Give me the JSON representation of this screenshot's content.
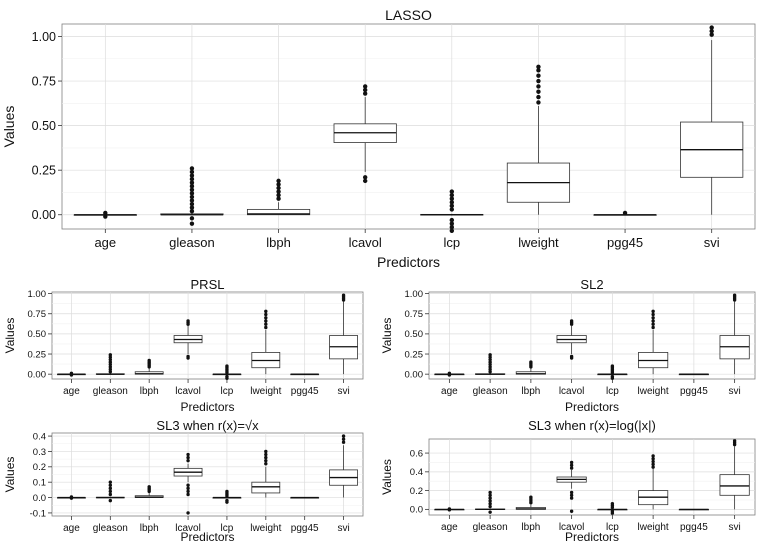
{
  "chart_data": [
    {
      "type": "boxplot",
      "title": "LASSO",
      "xlabel": "Predictors",
      "ylabel": "Values",
      "ylim": [
        -0.08,
        1.07
      ],
      "yticks": [
        0.0,
        0.25,
        0.5,
        0.75,
        1.0
      ],
      "ytick_labels": [
        "0.00",
        "0.25",
        "0.50",
        "0.75",
        "1.00"
      ],
      "grid": true,
      "categories": [
        "age",
        "gleason",
        "lbph",
        "lcavol",
        "lcp",
        "lweight",
        "pgg45",
        "svi"
      ],
      "boxes": [
        {
          "q1": 0.0,
          "median": 0.0,
          "q3": 0.0,
          "whisker_low": 0.0,
          "whisker_high": 0.0,
          "outliers": [
            -0.01,
            0.01
          ]
        },
        {
          "q1": 0.0,
          "median": 0.0,
          "q3": 0.005,
          "whisker_low": 0.0,
          "whisker_high": 0.01,
          "outliers": [
            -0.05,
            -0.02,
            0.02,
            0.04,
            0.06,
            0.08,
            0.1,
            0.12,
            0.14,
            0.16,
            0.18,
            0.2,
            0.22,
            0.24,
            0.26
          ]
        },
        {
          "q1": 0.0,
          "median": 0.005,
          "q3": 0.03,
          "whisker_low": 0.0,
          "whisker_high": 0.07,
          "outliers": [
            0.09,
            0.11,
            0.13,
            0.15,
            0.17,
            0.19
          ]
        },
        {
          "q1": 0.405,
          "median": 0.46,
          "q3": 0.51,
          "whisker_low": 0.24,
          "whisker_high": 0.66,
          "outliers": [
            0.19,
            0.21,
            0.68,
            0.7,
            0.72
          ]
        },
        {
          "q1": -0.002,
          "median": 0.0,
          "q3": 0.002,
          "whisker_low": -0.005,
          "whisker_high": 0.005,
          "outliers": [
            -0.09,
            -0.07,
            -0.05,
            -0.03,
            0.03,
            0.05,
            0.07,
            0.09,
            0.11,
            0.13
          ]
        },
        {
          "q1": 0.07,
          "median": 0.18,
          "q3": 0.29,
          "whisker_low": 0.0,
          "whisker_high": 0.61,
          "outliers": [
            0.63,
            0.66,
            0.69,
            0.72,
            0.75,
            0.78,
            0.81,
            0.83
          ]
        },
        {
          "q1": 0.0,
          "median": 0.0,
          "q3": 0.0,
          "whisker_low": 0.0,
          "whisker_high": 0.0,
          "outliers": [
            0.01
          ]
        },
        {
          "q1": 0.21,
          "median": 0.365,
          "q3": 0.52,
          "whisker_low": 0.0,
          "whisker_high": 0.98,
          "outliers": [
            1.01,
            1.03,
            1.05
          ]
        }
      ]
    },
    {
      "type": "boxplot",
      "title": "PRSL",
      "xlabel": "Predictors",
      "ylabel": "Values",
      "ylim": [
        -0.06,
        1.02
      ],
      "yticks": [
        0.0,
        0.25,
        0.5,
        0.75,
        1.0
      ],
      "ytick_labels": [
        "0.00",
        "0.25",
        "0.50",
        "0.75",
        "1.00"
      ],
      "grid": true,
      "categories": [
        "age",
        "gleason",
        "lbph",
        "lcavol",
        "lcp",
        "lweight",
        "pgg45",
        "svi"
      ],
      "boxes": [
        {
          "q1": 0.0,
          "median": 0.0,
          "q3": 0.0,
          "whisker_low": 0.0,
          "whisker_high": 0.0,
          "outliers": [
            -0.01,
            0.01
          ]
        },
        {
          "q1": 0.0,
          "median": 0.0,
          "q3": 0.005,
          "whisker_low": 0.0,
          "whisker_high": 0.01,
          "outliers": [
            0.03,
            0.06,
            0.09,
            0.12,
            0.15,
            0.18,
            0.21,
            0.24
          ]
        },
        {
          "q1": 0.0,
          "median": 0.005,
          "q3": 0.03,
          "whisker_low": 0.0,
          "whisker_high": 0.07,
          "outliers": [
            0.09,
            0.11,
            0.13,
            0.15,
            0.17
          ]
        },
        {
          "q1": 0.39,
          "median": 0.43,
          "q3": 0.48,
          "whisker_low": 0.25,
          "whisker_high": 0.6,
          "outliers": [
            0.2,
            0.22,
            0.62,
            0.64,
            0.66
          ]
        },
        {
          "q1": 0.0,
          "median": 0.0,
          "q3": 0.0,
          "whisker_low": 0.0,
          "whisker_high": 0.0,
          "outliers": [
            -0.05,
            -0.03,
            0.02,
            0.04,
            0.06,
            0.08,
            0.1
          ]
        },
        {
          "q1": 0.08,
          "median": 0.17,
          "q3": 0.27,
          "whisker_low": 0.0,
          "whisker_high": 0.55,
          "outliers": [
            0.58,
            0.62,
            0.66,
            0.7,
            0.74,
            0.78
          ]
        },
        {
          "q1": 0.0,
          "median": 0.0,
          "q3": 0.0,
          "whisker_low": 0.0,
          "whisker_high": 0.0,
          "outliers": []
        },
        {
          "q1": 0.19,
          "median": 0.34,
          "q3": 0.48,
          "whisker_low": 0.0,
          "whisker_high": 0.9,
          "outliers": [
            0.92,
            0.94,
            0.96,
            0.98
          ]
        }
      ]
    },
    {
      "type": "boxplot",
      "title": "SL2",
      "xlabel": "Predictors",
      "ylabel": "Values",
      "ylim": [
        -0.06,
        1.02
      ],
      "yticks": [
        0.0,
        0.25,
        0.5,
        0.75,
        1.0
      ],
      "ytick_labels": [
        "0.00",
        "0.25",
        "0.50",
        "0.75",
        "1.00"
      ],
      "grid": true,
      "categories": [
        "age",
        "gleason",
        "lbph",
        "lcavol",
        "lcp",
        "lweight",
        "pgg45",
        "svi"
      ],
      "boxes": [
        {
          "q1": 0.0,
          "median": 0.0,
          "q3": 0.0,
          "whisker_low": 0.0,
          "whisker_high": 0.0,
          "outliers": [
            -0.01,
            0.01
          ]
        },
        {
          "q1": 0.0,
          "median": 0.0,
          "q3": 0.005,
          "whisker_low": 0.0,
          "whisker_high": 0.01,
          "outliers": [
            0.03,
            0.06,
            0.09,
            0.12,
            0.15,
            0.18,
            0.21,
            0.24
          ]
        },
        {
          "q1": 0.0,
          "median": 0.005,
          "q3": 0.03,
          "whisker_low": 0.0,
          "whisker_high": 0.07,
          "outliers": [
            0.09,
            0.11,
            0.13,
            0.15
          ]
        },
        {
          "q1": 0.39,
          "median": 0.43,
          "q3": 0.48,
          "whisker_low": 0.25,
          "whisker_high": 0.6,
          "outliers": [
            0.2,
            0.22,
            0.62,
            0.64,
            0.66
          ]
        },
        {
          "q1": 0.0,
          "median": 0.0,
          "q3": 0.0,
          "whisker_low": 0.0,
          "whisker_high": 0.0,
          "outliers": [
            -0.05,
            -0.03,
            0.02,
            0.04,
            0.06,
            0.08,
            0.1
          ]
        },
        {
          "q1": 0.08,
          "median": 0.17,
          "q3": 0.27,
          "whisker_low": 0.0,
          "whisker_high": 0.55,
          "outliers": [
            0.58,
            0.62,
            0.66,
            0.7,
            0.74,
            0.78
          ]
        },
        {
          "q1": 0.0,
          "median": 0.0,
          "q3": 0.0,
          "whisker_low": 0.0,
          "whisker_high": 0.0,
          "outliers": []
        },
        {
          "q1": 0.19,
          "median": 0.34,
          "q3": 0.48,
          "whisker_low": 0.0,
          "whisker_high": 0.9,
          "outliers": [
            0.92,
            0.94,
            0.96,
            0.98
          ]
        }
      ]
    },
    {
      "type": "boxplot",
      "title": "SL3 when r(x)=√x",
      "xlabel": "Predictors",
      "ylabel": "Values",
      "ylim": [
        -0.12,
        0.42
      ],
      "yticks": [
        -0.1,
        0.0,
        0.1,
        0.2,
        0.3,
        0.4
      ],
      "ytick_labels": [
        "-0.1",
        "0.0",
        "0.1",
        "0.2",
        "0.3",
        "0.4"
      ],
      "grid": true,
      "categories": [
        "age",
        "gleason",
        "lbph",
        "lcavol",
        "lcp",
        "lweight",
        "pgg45",
        "svi"
      ],
      "boxes": [
        {
          "q1": 0.0,
          "median": 0.0,
          "q3": 0.0,
          "whisker_low": 0.0,
          "whisker_high": 0.0,
          "outliers": [
            -0.004,
            0.004
          ]
        },
        {
          "q1": 0.0,
          "median": 0.0,
          "q3": 0.002,
          "whisker_low": 0.0,
          "whisker_high": 0.005,
          "outliers": [
            -0.02,
            0.02,
            0.04,
            0.06,
            0.08,
            0.1
          ]
        },
        {
          "q1": 0.0,
          "median": 0.003,
          "q3": 0.012,
          "whisker_low": 0.0,
          "whisker_high": 0.03,
          "outliers": [
            0.04,
            0.05,
            0.06,
            0.07
          ]
        },
        {
          "q1": 0.14,
          "median": 0.165,
          "q3": 0.19,
          "whisker_low": 0.1,
          "whisker_high": 0.22,
          "outliers": [
            -0.1,
            0.02,
            0.04,
            0.06,
            0.08,
            0.24,
            0.26,
            0.28
          ]
        },
        {
          "q1": 0.0,
          "median": 0.0,
          "q3": 0.0,
          "whisker_low": 0.0,
          "whisker_high": 0.0,
          "outliers": [
            -0.03,
            -0.02,
            0.01,
            0.02,
            0.03,
            0.04
          ]
        },
        {
          "q1": 0.03,
          "median": 0.07,
          "q3": 0.1,
          "whisker_low": 0.0,
          "whisker_high": 0.2,
          "outliers": [
            0.22,
            0.24,
            0.26,
            0.28,
            0.3
          ]
        },
        {
          "q1": 0.0,
          "median": 0.0,
          "q3": 0.0,
          "whisker_low": 0.0,
          "whisker_high": 0.0,
          "outliers": []
        },
        {
          "q1": 0.08,
          "median": 0.13,
          "q3": 0.18,
          "whisker_low": 0.0,
          "whisker_high": 0.34,
          "outliers": [
            0.36,
            0.38,
            0.4
          ]
        }
      ]
    },
    {
      "type": "boxplot",
      "title": "SL3 when r(x)=log(|x|)",
      "xlabel": "Predictors",
      "ylabel": "Values",
      "ylim": [
        -0.06,
        0.75
      ],
      "yticks": [
        0.0,
        0.2,
        0.4,
        0.6
      ],
      "ytick_labels": [
        "0.0",
        "0.2",
        "0.4",
        "0.6"
      ],
      "grid": true,
      "categories": [
        "age",
        "gleason",
        "lbph",
        "lcavol",
        "lcp",
        "lweight",
        "pgg45",
        "svi"
      ],
      "boxes": [
        {
          "q1": 0.0,
          "median": 0.0,
          "q3": 0.0,
          "whisker_low": 0.0,
          "whisker_high": 0.0,
          "outliers": [
            -0.005,
            0.005
          ]
        },
        {
          "q1": 0.0,
          "median": 0.0,
          "q3": 0.004,
          "whisker_low": 0.0,
          "whisker_high": 0.01,
          "outliers": [
            -0.03,
            0.03,
            0.06,
            0.09,
            0.12,
            0.15,
            0.18
          ]
        },
        {
          "q1": 0.0,
          "median": 0.005,
          "q3": 0.02,
          "whisker_low": 0.0,
          "whisker_high": 0.05,
          "outliers": [
            0.07,
            0.09,
            0.11,
            0.13
          ]
        },
        {
          "q1": 0.29,
          "median": 0.32,
          "q3": 0.345,
          "whisker_low": 0.22,
          "whisker_high": 0.42,
          "outliers": [
            -0.02,
            0.12,
            0.15,
            0.18,
            0.44,
            0.47,
            0.5
          ]
        },
        {
          "q1": 0.0,
          "median": 0.0,
          "q3": 0.0,
          "whisker_low": 0.0,
          "whisker_high": 0.0,
          "outliers": [
            -0.04,
            -0.02,
            0.02,
            0.04,
            0.06
          ]
        },
        {
          "q1": 0.05,
          "median": 0.13,
          "q3": 0.2,
          "whisker_low": 0.0,
          "whisker_high": 0.43,
          "outliers": [
            0.45,
            0.48,
            0.51,
            0.54,
            0.57
          ]
        },
        {
          "q1": 0.0,
          "median": 0.0,
          "q3": 0.0,
          "whisker_low": 0.0,
          "whisker_high": 0.0,
          "outliers": []
        },
        {
          "q1": 0.15,
          "median": 0.25,
          "q3": 0.37,
          "whisker_low": 0.0,
          "whisker_high": 0.67,
          "outliers": [
            0.69,
            0.71,
            0.73
          ]
        }
      ]
    }
  ]
}
